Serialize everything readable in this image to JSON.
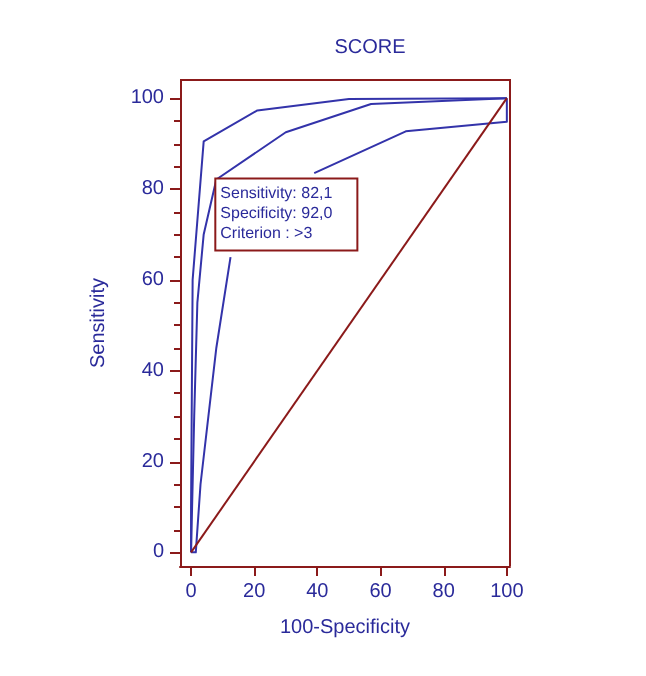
{
  "chart_data": {
    "type": "line",
    "title": "SCORE",
    "xlabel": "100-Specificity",
    "ylabel": "Sensitivity",
    "xlim": [
      -3.5,
      101
    ],
    "ylim": [
      -3,
      104
    ],
    "xticks": [
      0,
      20,
      40,
      60,
      80,
      100
    ],
    "yticks": [
      0,
      20,
      40,
      60,
      80,
      100
    ],
    "grid": false,
    "marker": "none",
    "line_style": "solid",
    "series": [
      {
        "color": "#3333aa",
        "x": [
          0,
          0,
          0.5,
          4,
          21,
          50,
          100
        ],
        "values": [
          0,
          10,
          60,
          90.5,
          97.3,
          99.8,
          100
        ]
      },
      {
        "color": "#3333aa",
        "x": [
          0,
          1,
          2,
          4,
          8,
          30,
          57,
          100
        ],
        "values": [
          0,
          30,
          55,
          70,
          82.1,
          92.5,
          98.7,
          100
        ]
      },
      {
        "color": "#3333aa",
        "x": [
          0,
          1.5,
          3,
          8,
          12.5,
          16,
          25,
          39,
          68,
          100,
          100
        ],
        "values": [
          0,
          0,
          15,
          45,
          65,
          null,
          null,
          83.5,
          92.7,
          94.8,
          100
        ]
      },
      {
        "color": "#8b1a1a",
        "x": [
          0,
          100
        ],
        "values": [
          0,
          100
        ]
      }
    ],
    "annotations": [
      {
        "text": "Sensitivity: 82,1\nSpecificity: 92,0\nCriterion : >3",
        "x": 8,
        "y": 82.1
      }
    ]
  }
}
